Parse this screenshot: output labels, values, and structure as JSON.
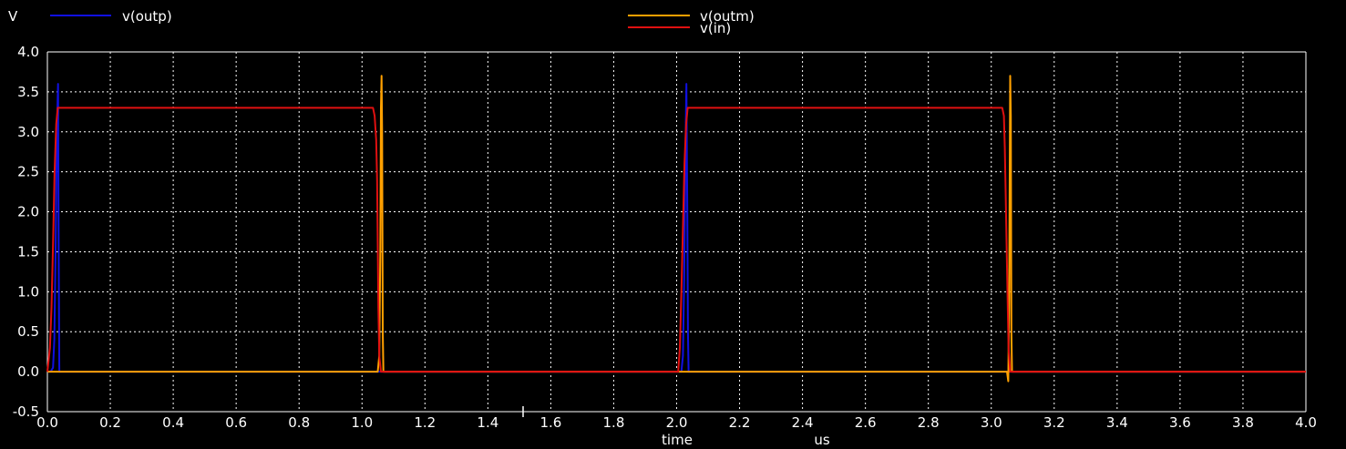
{
  "chart_data": {
    "type": "line",
    "y_unit_label": "V",
    "xlabel": "time",
    "x_unit_label": "us",
    "xlim": [
      0.0,
      4.0
    ],
    "ylim": [
      -0.5,
      4.0
    ],
    "grid": true,
    "x_ticks": [
      "0.0",
      "0.2",
      "0.4",
      "0.6",
      "0.8",
      "1.0",
      "1.2",
      "1.4",
      "1.6",
      "1.8",
      "2.0",
      "2.2",
      "2.4",
      "2.6",
      "2.8",
      "3.0",
      "3.2",
      "3.4",
      "3.6",
      "3.8",
      "4.0"
    ],
    "y_ticks": [
      "-0.5",
      "0.0",
      "0.5",
      "1.0",
      "1.5",
      "2.0",
      "2.5",
      "3.0",
      "3.5",
      "4.0"
    ],
    "legend_placement": "top",
    "series": [
      {
        "name": "v(outp)",
        "color": "#1010e0",
        "x": [
          0.0,
          0.01,
          0.018,
          0.022,
          0.026,
          0.03,
          0.034,
          0.036,
          0.038,
          2.015,
          2.02,
          2.024,
          2.028,
          2.031,
          2.034,
          2.036,
          2.038,
          4.0
        ],
        "y": [
          0.0,
          0.0,
          0.05,
          0.4,
          1.5,
          3.0,
          3.6,
          1.5,
          0.0,
          0.0,
          0.2,
          1.2,
          2.8,
          3.6,
          2.0,
          0.5,
          0.0,
          0.0
        ]
      },
      {
        "name": "v(outm)",
        "color": "#ffa000",
        "x": [
          0.0,
          1.05,
          1.055,
          1.058,
          1.06,
          1.062,
          1.064,
          1.066,
          1.068,
          1.07,
          3.05,
          3.054,
          3.057,
          3.06,
          3.062,
          3.064,
          3.066,
          3.07,
          4.0
        ],
        "y": [
          0.0,
          0.0,
          0.2,
          1.5,
          3.3,
          3.7,
          3.0,
          0.5,
          0.0,
          0.0,
          0.0,
          -0.12,
          1.0,
          3.7,
          3.2,
          0.5,
          0.0,
          0.0,
          0.0
        ]
      },
      {
        "name": "v(in)",
        "color": "#e01010",
        "x": [
          0.0,
          0.008,
          0.013,
          0.018,
          0.023,
          0.028,
          0.033,
          0.038,
          1.035,
          1.04,
          1.045,
          1.048,
          1.05,
          1.052,
          1.055,
          1.06,
          2.005,
          2.01,
          2.015,
          2.02,
          2.025,
          2.03,
          2.035,
          2.04,
          3.035,
          3.04,
          3.043,
          3.046,
          3.049,
          3.052,
          3.055,
          3.06,
          4.0
        ],
        "y": [
          0.0,
          0.3,
          0.8,
          1.6,
          2.5,
          3.1,
          3.3,
          3.3,
          3.3,
          3.2,
          2.9,
          2.4,
          1.6,
          0.8,
          0.2,
          0.0,
          0.0,
          0.3,
          1.0,
          1.8,
          2.6,
          3.1,
          3.3,
          3.3,
          3.3,
          3.2,
          2.8,
          2.2,
          1.5,
          0.9,
          0.3,
          0.0,
          0.0
        ]
      }
    ]
  }
}
